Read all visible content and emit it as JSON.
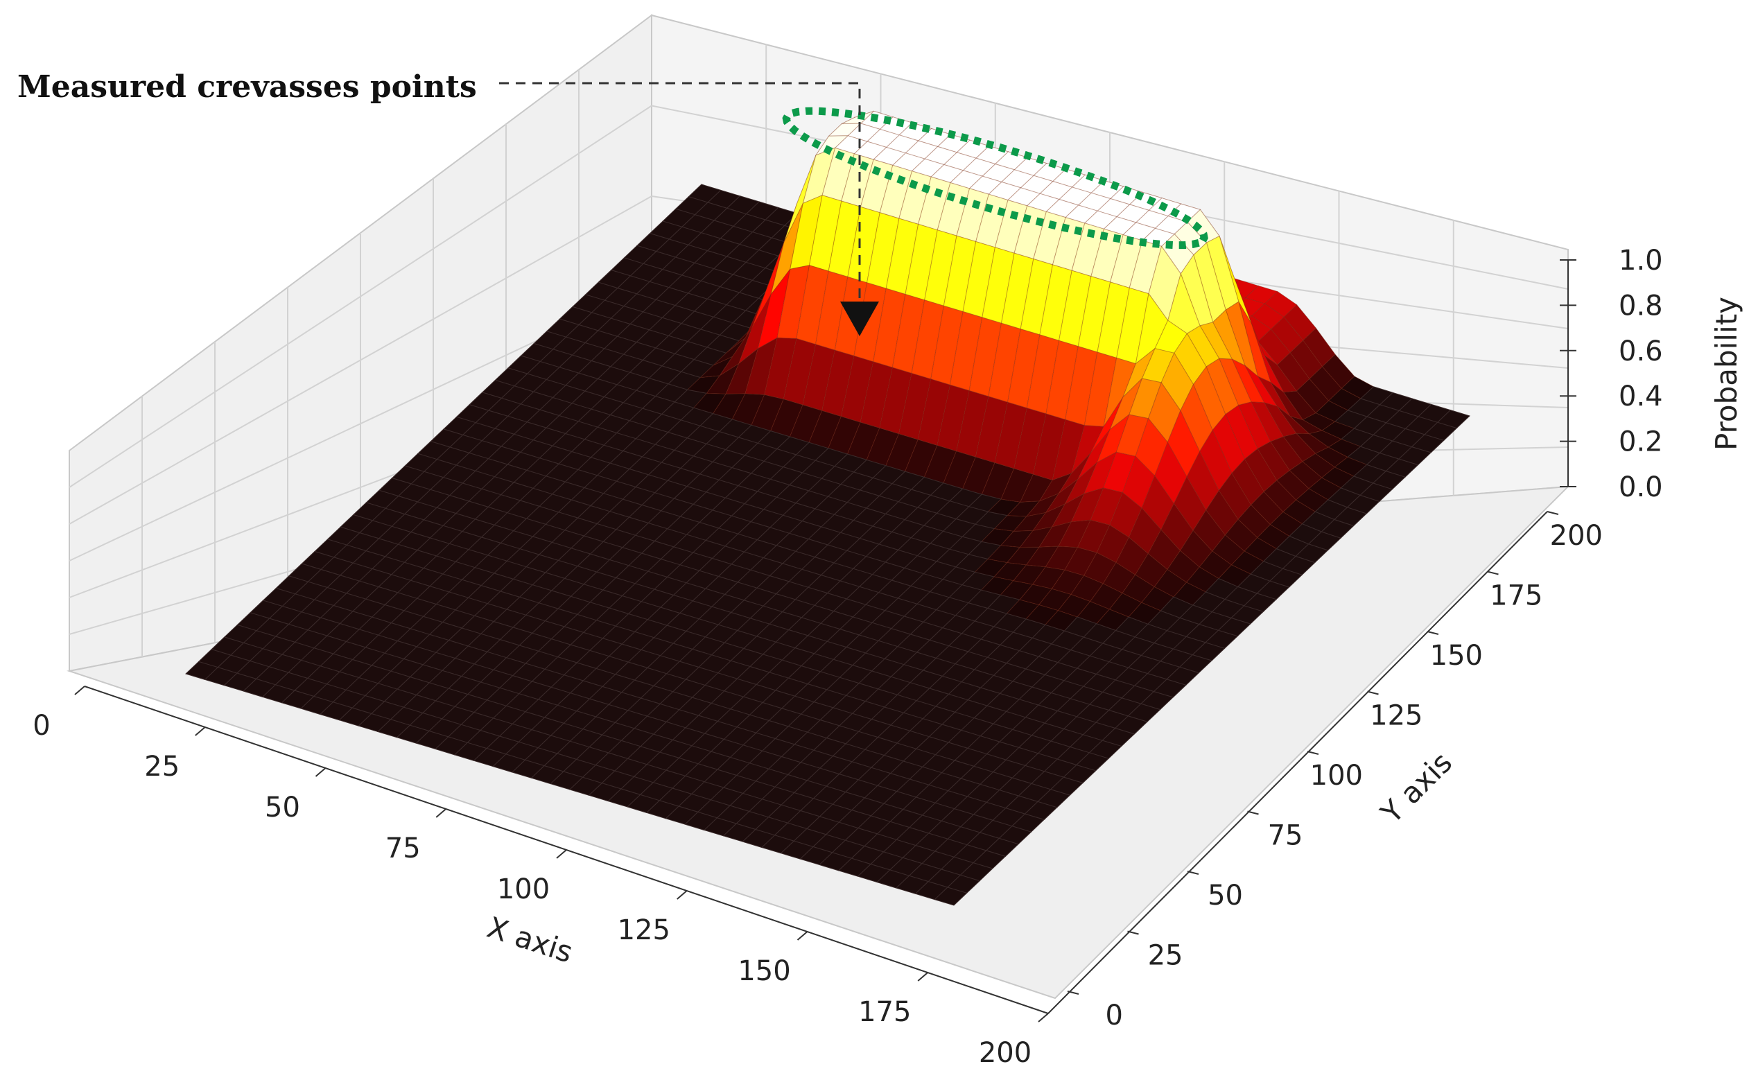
{
  "chart_data": {
    "type": "surface3d",
    "title": "",
    "xlabel": "X axis",
    "ylabel": "Y axis",
    "zlabel": "Probability",
    "x_ticks": [
      0,
      25,
      50,
      75,
      100,
      125,
      150,
      175,
      200
    ],
    "y_ticks": [
      0,
      25,
      50,
      75,
      100,
      125,
      150,
      175,
      200
    ],
    "z_ticks": [
      "0.0",
      "0.2",
      "0.4",
      "0.6",
      "0.8",
      "1.0"
    ],
    "xlim": [
      0,
      200
    ],
    "ylim": [
      0,
      200
    ],
    "zlim": [
      0,
      1
    ],
    "grid": true,
    "colormap": "hot",
    "surface": {
      "description_points": [
        {
          "x": 60,
          "y": 140,
          "z": 0.0
        },
        {
          "x": 60,
          "y": 160,
          "z": 0.95
        },
        {
          "x": 80,
          "y": 165,
          "z": 1.0
        },
        {
          "x": 100,
          "y": 165,
          "z": 1.0
        },
        {
          "x": 120,
          "y": 165,
          "z": 1.0
        },
        {
          "x": 140,
          "y": 160,
          "z": 0.95
        },
        {
          "x": 100,
          "y": 120,
          "z": 0.0
        }
      ]
    },
    "annotation": {
      "text": "Measured crevasses points",
      "highlight_color": "#0c9a4a"
    }
  }
}
